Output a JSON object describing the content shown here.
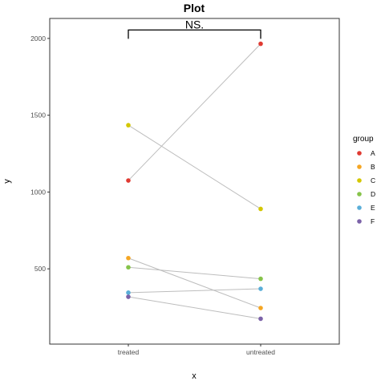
{
  "chart_data": {
    "type": "scatter",
    "title": "Plot",
    "xlabel": "x",
    "ylabel": "y",
    "categories": [
      "treated",
      "untreated"
    ],
    "ylim": [
      10,
      2130
    ],
    "yticks": [
      500,
      1000,
      1500,
      2000
    ],
    "grid": false,
    "legend": {
      "title": "group",
      "placement": "right"
    },
    "series": [
      {
        "name": "A",
        "color": "#e03a32",
        "values": [
          1075,
          1965
        ]
      },
      {
        "name": "B",
        "color": "#f5a623",
        "values": [
          570,
          245
        ]
      },
      {
        "name": "C",
        "color": "#d4c700",
        "values": [
          1435,
          890
        ]
      },
      {
        "name": "D",
        "color": "#86c34a",
        "values": [
          510,
          435
        ]
      },
      {
        "name": "E",
        "color": "#5aaed8",
        "values": [
          345,
          370
        ]
      },
      {
        "name": "F",
        "color": "#7b62a8",
        "values": [
          318,
          175
        ]
      }
    ],
    "line_color": "#bdbdbd",
    "annotation": {
      "text": "NS.",
      "bracket_between": [
        "treated",
        "untreated"
      ],
      "bracket_y": 2055
    }
  }
}
